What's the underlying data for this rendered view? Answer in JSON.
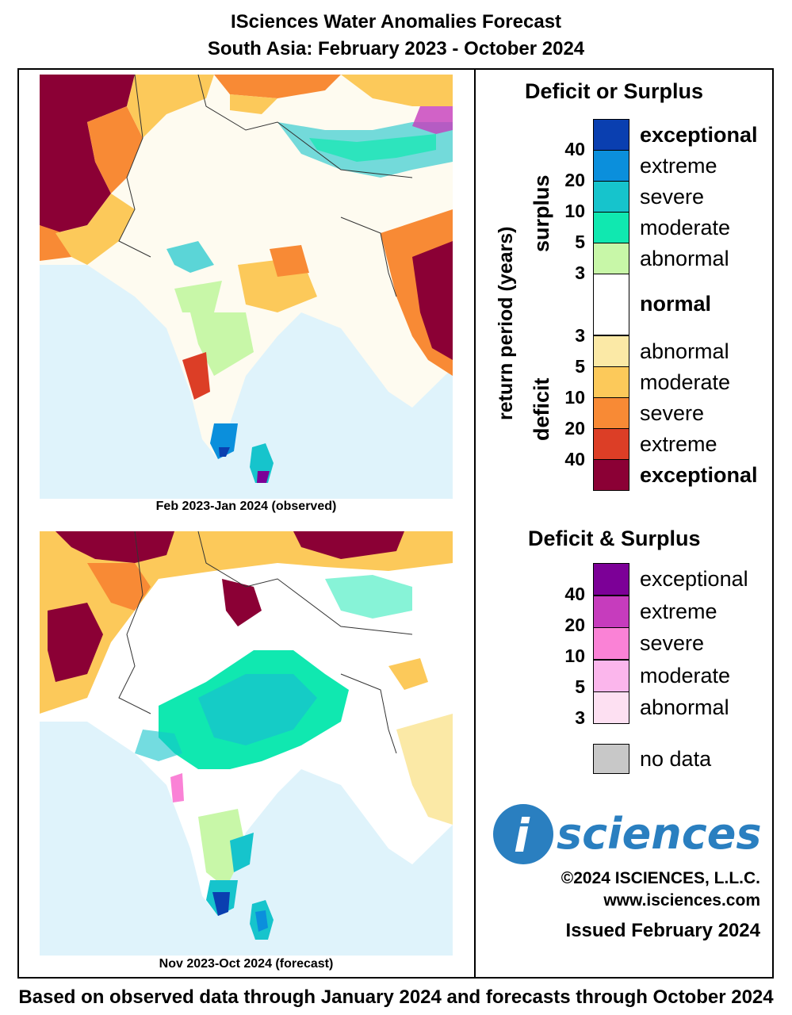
{
  "header": {
    "title": "ISciences Water Anomalies Forecast",
    "subtitle": "South Asia: February 2023 - October 2024"
  },
  "maps": {
    "observed_caption": "Feb 2023-Jan 2024 (observed)",
    "forecast_caption": "Nov 2023-Oct 2024 (forecast)"
  },
  "legend": {
    "title_primary": "Deficit or Surplus",
    "axis_label": "return period (years)",
    "surplus_label": "surplus",
    "deficit_label": "deficit",
    "surplus": [
      {
        "label": "exceptional",
        "color": "#0a3fb0"
      },
      {
        "label": "extreme",
        "color": "#0b8fdc"
      },
      {
        "label": "severe",
        "color": "#16c4cc"
      },
      {
        "label": "moderate",
        "color": "#10e8b0"
      },
      {
        "label": "abnormal",
        "color": "#c8f7a8"
      }
    ],
    "normal": {
      "label": "normal",
      "color": "#ffffff"
    },
    "deficit": [
      {
        "label": "abnormal",
        "color": "#fbe9a6"
      },
      {
        "label": "moderate",
        "color": "#fcc95a"
      },
      {
        "label": "severe",
        "color": "#f88a35"
      },
      {
        "label": "extreme",
        "color": "#dc3e26"
      },
      {
        "label": "exceptional",
        "color": "#8b0035"
      }
    ],
    "surplus_numbers": [
      "40",
      "20",
      "10",
      "5",
      "3"
    ],
    "deficit_numbers": [
      "3",
      "5",
      "10",
      "20",
      "40"
    ],
    "title_combined": "Deficit & Surplus",
    "combined": [
      {
        "label": "exceptional",
        "color": "#7c0097"
      },
      {
        "label": "extreme",
        "color": "#c63cbd"
      },
      {
        "label": "severe",
        "color": "#fa82d6"
      },
      {
        "label": "moderate",
        "color": "#fbb6ec"
      },
      {
        "label": "abnormal",
        "color": "#fde0f2"
      }
    ],
    "combined_numbers": [
      "40",
      "20",
      "10",
      "5",
      "3"
    ],
    "no_data": {
      "label": "no data",
      "color": "#c8c8c8"
    }
  },
  "brand": {
    "logo_letter": "i",
    "logo_word": "sciences",
    "copyright": "©2024 ISCIENCES, L.L.C.",
    "website": "www.isciences.com",
    "issued": "Issued February 2024"
  },
  "footer": "Based on observed data through January 2024 and forecasts through October 2024"
}
